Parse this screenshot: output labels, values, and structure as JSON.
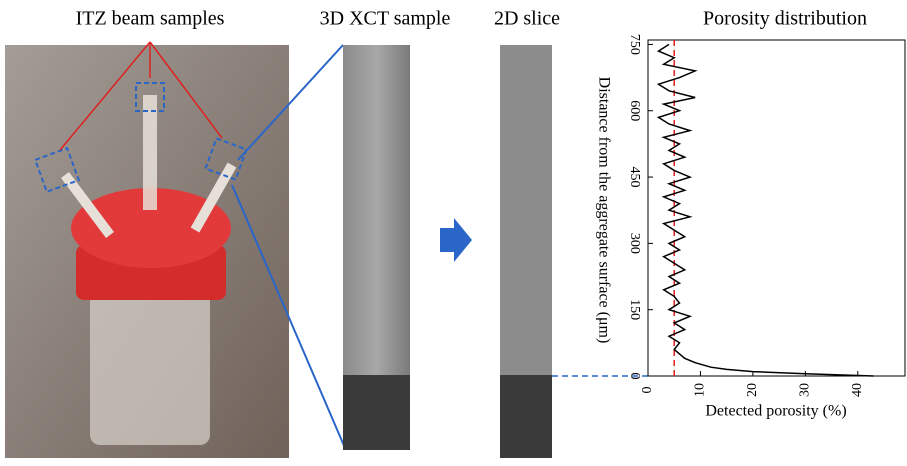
{
  "panels": {
    "photo_title": "ITZ beam samples",
    "xct_title": "3D XCT sample",
    "slice_title": "2D slice"
  },
  "chart_data": {
    "type": "line",
    "title": "Porosity distribution",
    "x_label": "Detected porosity (%)",
    "y_label": "Distance from the aggregate surface (μm)",
    "y": [
      0,
      5,
      10,
      15,
      20,
      30,
      40,
      50,
      60,
      75,
      90,
      105,
      120,
      135,
      150,
      165,
      180,
      195,
      210,
      225,
      240,
      255,
      270,
      285,
      300,
      315,
      330,
      345,
      360,
      375,
      390,
      405,
      420,
      435,
      450,
      465,
      480,
      495,
      510,
      525,
      540,
      555,
      570,
      585,
      600,
      615,
      630,
      645,
      660,
      675,
      690,
      705,
      720,
      735,
      750
    ],
    "series": [
      {
        "color": "#000000",
        "values": [
          43,
          30,
          20,
          15,
          12,
          9,
          7,
          6,
          5,
          6,
          4,
          7,
          5,
          8,
          4,
          6,
          5,
          3,
          6,
          4,
          7,
          5,
          3,
          6,
          4,
          7,
          5,
          3,
          8,
          4,
          6,
          3,
          7,
          4,
          8,
          5,
          3,
          7,
          4,
          6,
          3,
          8,
          4,
          2,
          6,
          3,
          9,
          4,
          2,
          6,
          9,
          3,
          5,
          2,
          4
        ]
      }
    ],
    "reference_x": 5,
    "reference_color": "#e02020",
    "xlim": [
      0,
      49
    ],
    "xticks": [
      0,
      10,
      20,
      30,
      40
    ],
    "ylim": [
      0,
      760
    ],
    "yticks": [
      0,
      150,
      300,
      450,
      600,
      750
    ]
  }
}
